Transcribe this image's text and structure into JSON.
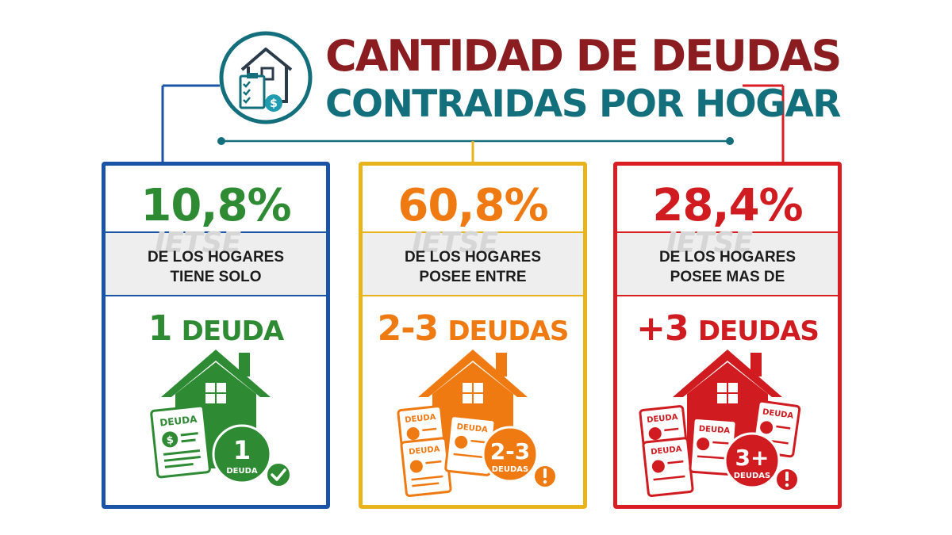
{
  "title": {
    "line1": "CANTIDAD DE DEUDAS",
    "line2": "CONTRAIDAS POR HOGAR"
  },
  "watermark": "IETSE",
  "colors": {
    "title_dark_red": "#8b1c1f",
    "title_teal": "#136f7c",
    "blue": "#1a54a6",
    "green": "#2e8b34",
    "yellow": "#e8b41b",
    "orange": "#f07a12",
    "red": "#d81e23"
  },
  "icons": {
    "header": "house-document-icon",
    "check": "check-circle-icon",
    "alert": "exclamation-circle-icon"
  },
  "cards": [
    {
      "percent": "10,8%",
      "desc_line1": "DE LOS HOGARES",
      "desc_line2": "TIENE SOLO",
      "count_num": "1",
      "count_word": "DEUDA",
      "doc_label": "DEUDA",
      "badge_num": "1",
      "badge_word": "DEUDA",
      "badge_icon": "check-circle-icon"
    },
    {
      "percent": "60,8%",
      "desc_line1": "DE LOS HOGARES",
      "desc_line2": "POSEE ENTRE",
      "count_num": "2-3",
      "count_word": "DEUDAS",
      "doc_label": "DEUDA",
      "badge_num": "2-3",
      "badge_word": "DEUDAS",
      "badge_icon": "exclamation-circle-icon"
    },
    {
      "percent": "28,4%",
      "desc_line1": "DE LOS HOGARES",
      "desc_line2": "POSEE MAS DE",
      "count_num": "+3",
      "count_word": "DEUDAS",
      "doc_label": "DEUDA",
      "badge_num": "3+",
      "badge_word": "DEUDAS",
      "badge_icon": "exclamation-circle-icon"
    }
  ]
}
